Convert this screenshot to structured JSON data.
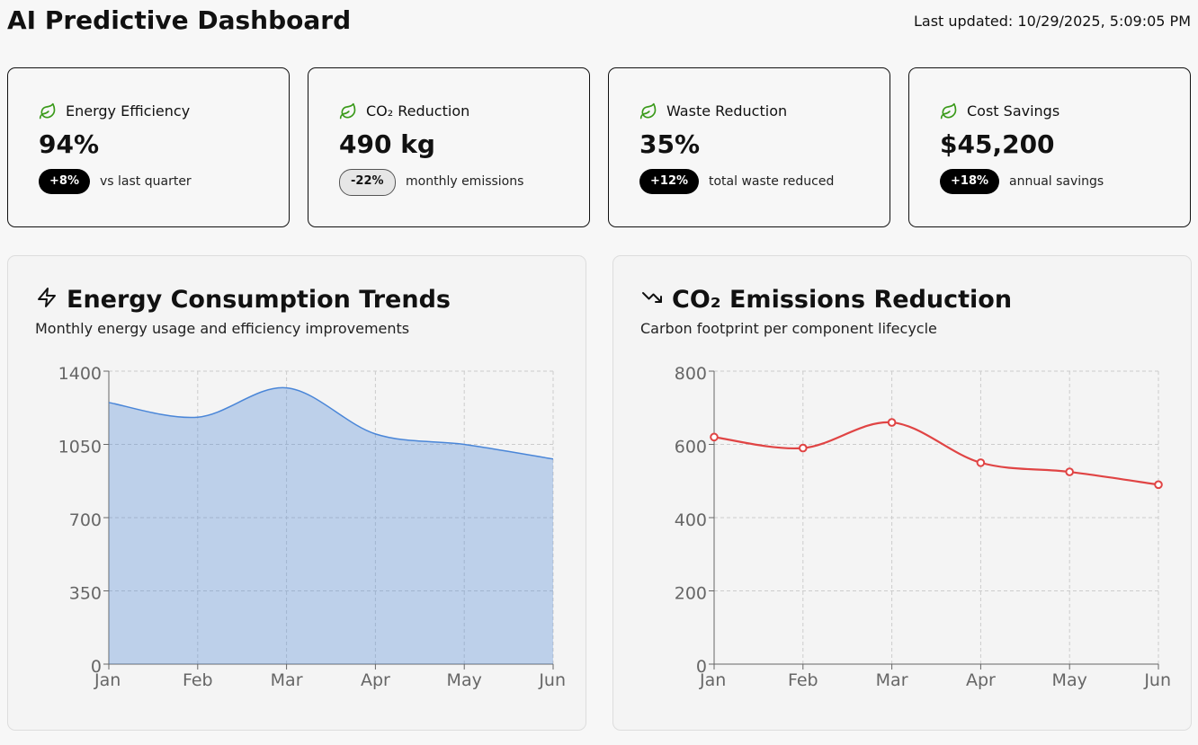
{
  "header": {
    "title": "AI Predictive Dashboard",
    "updated": "Last updated: 10/29/2025, 5:09:05 PM"
  },
  "cards": [
    {
      "label": "Energy Efficiency",
      "value": "94%",
      "change": "+8%",
      "note": "vs last quarter"
    },
    {
      "label": "CO₂ Reduction",
      "value": "490 kg",
      "change": "-22%",
      "note": "monthly emissions"
    },
    {
      "label": "Waste Reduction",
      "value": "35%",
      "change": "+12%",
      "note": "total waste reduced"
    },
    {
      "label": "Cost Savings",
      "value": "$45,200",
      "change": "+18%",
      "note": "annual savings"
    }
  ],
  "chart_data": [
    {
      "type": "area",
      "title": "Energy Consumption Trends",
      "subtitle": "Monthly energy usage and efficiency improvements",
      "categories": [
        "Jan",
        "Feb",
        "Mar",
        "Apr",
        "May",
        "Jun"
      ],
      "values": [
        1250,
        1180,
        1320,
        1100,
        1050,
        980
      ],
      "color": "#4a86d8",
      "ylim": [
        0,
        1400
      ],
      "yticks": [
        0,
        350,
        700,
        1050,
        1400
      ],
      "grid": true
    },
    {
      "type": "line",
      "title": "CO₂ Emissions Reduction",
      "subtitle": "Carbon footprint per component lifecycle",
      "categories": [
        "Jan",
        "Feb",
        "Mar",
        "Apr",
        "May",
        "Jun"
      ],
      "values": [
        620,
        590,
        660,
        550,
        525,
        490
      ],
      "color": "#e04444",
      "ylim": [
        0,
        800
      ],
      "yticks": [
        0,
        200,
        400,
        600,
        800
      ],
      "grid": true
    }
  ]
}
